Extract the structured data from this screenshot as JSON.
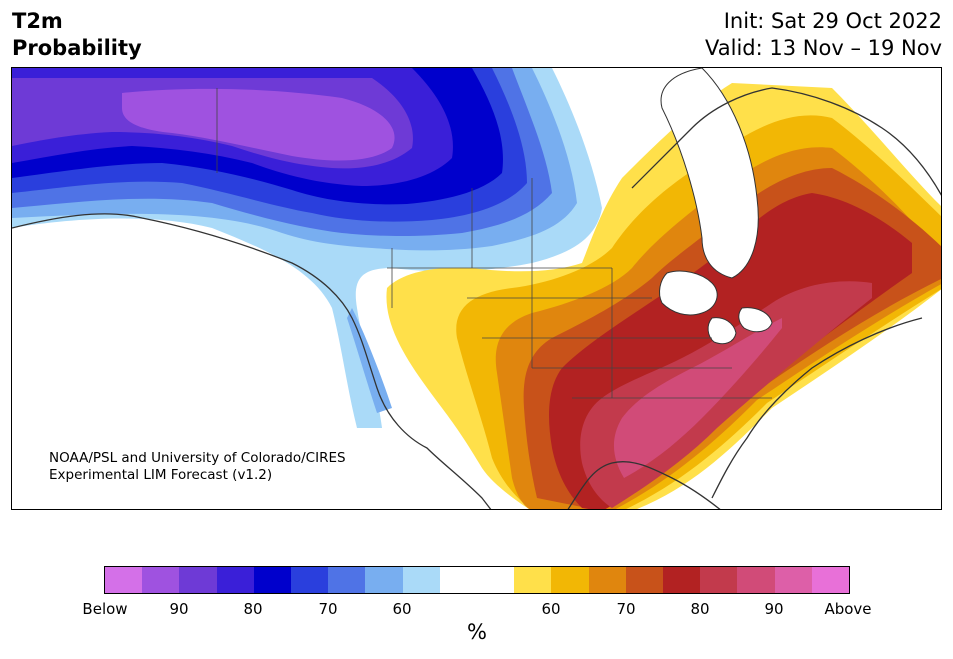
{
  "title": {
    "line1": "T2m",
    "line2": "Probability",
    "init": "Init: Sat 29 Oct 2022",
    "valid": "Valid: 13 Nov – 19 Nov"
  },
  "credit": {
    "line1": "NOAA/PSL and University of Colorado/CIRES",
    "line2": "Experimental LIM Forecast (v1.2)"
  },
  "legend": {
    "unit": "%",
    "colors": [
      "#d470e8",
      "#9f52e0",
      "#6e3ad6",
      "#3a1fd8",
      "#0000cc",
      "#2a3fdd",
      "#4f73e6",
      "#78aef0",
      "#aadaf8",
      "#ffffff",
      "#ffffff",
      "#ffe04a",
      "#f2b705",
      "#e0860e",
      "#c8521a",
      "#b22222",
      "#c23a4c",
      "#d14b78",
      "#dd5fa8",
      "#e870d8"
    ],
    "tick_labels": [
      "Below",
      "90",
      "80",
      "70",
      "60",
      "60",
      "70",
      "80",
      "90",
      "Above"
    ]
  },
  "map": {
    "region": "North America",
    "cold_colors": [
      "#9f52e0",
      "#6e3ad6",
      "#3a1fd8",
      "#0000cc",
      "#2a3fdd",
      "#4f73e6",
      "#78aef0",
      "#aadaf8"
    ],
    "warm_colors": [
      "#ffe04a",
      "#f2b705",
      "#e0860e",
      "#c8521a",
      "#b22222",
      "#c23a4c",
      "#d14b78"
    ],
    "coastline_color": "#333333"
  }
}
